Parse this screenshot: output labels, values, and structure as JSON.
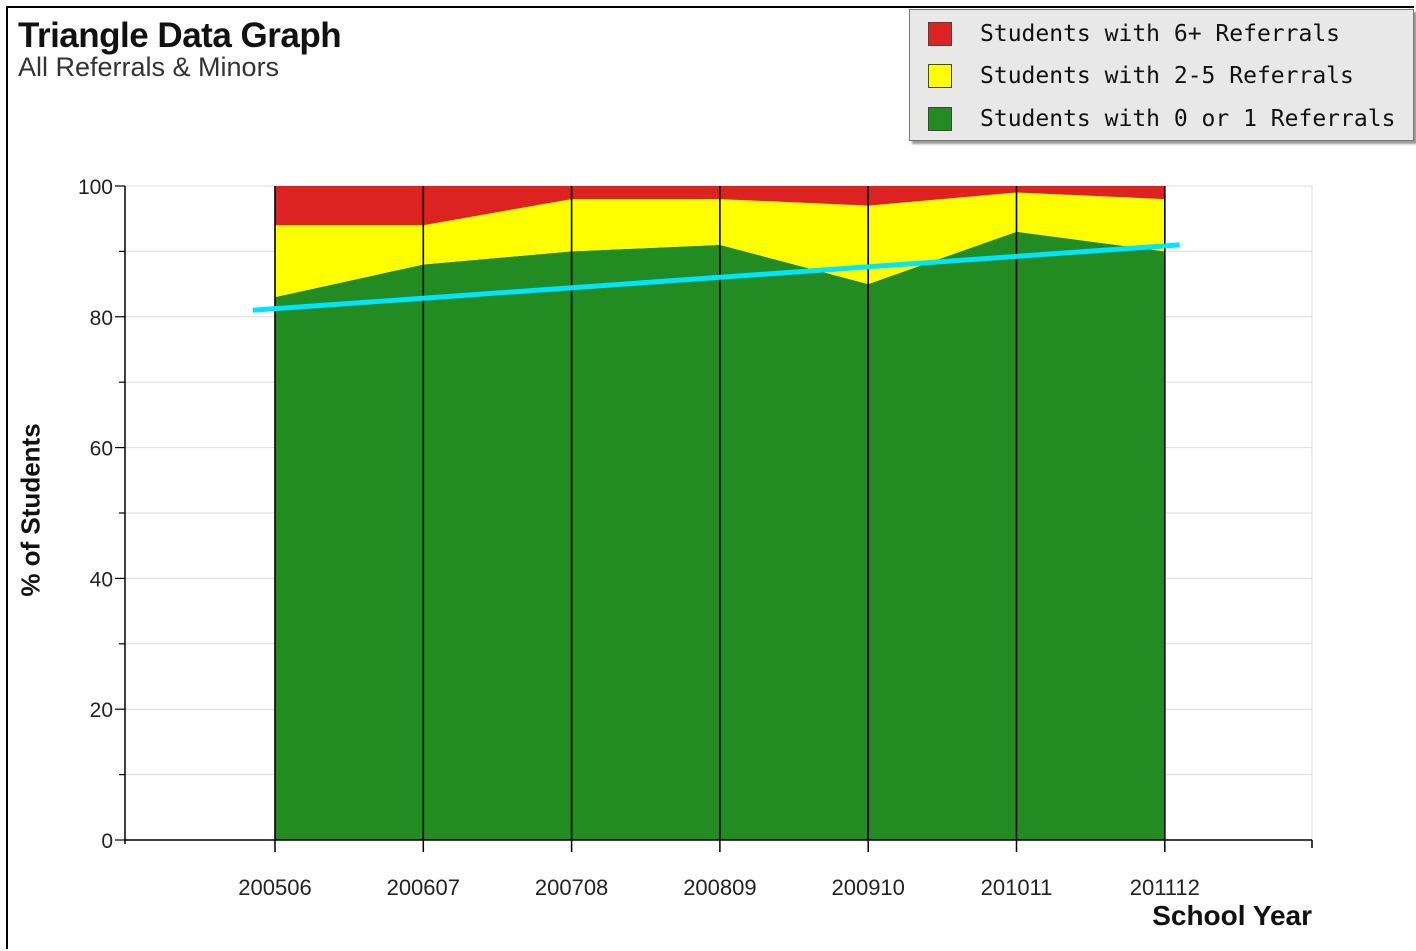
{
  "chart_data": {
    "type": "area",
    "title": "Triangle Data Graph",
    "subtitle": "All Referrals & Minors",
    "xlabel": "School Year",
    "ylabel": "% of Students",
    "ylim": [
      0,
      100
    ],
    "yticks": [
      0,
      20,
      40,
      60,
      80,
      100
    ],
    "categories": [
      "200506",
      "200607",
      "200708",
      "200809",
      "200910",
      "201011",
      "201112"
    ],
    "stacked": true,
    "grid": true,
    "legend_position": "top-right",
    "series": [
      {
        "name": "Students with 0 or 1 Referrals",
        "color": "#228B22",
        "values": [
          83,
          88,
          90,
          91,
          85,
          93,
          90
        ]
      },
      {
        "name": "Students with 2-5 Referrals",
        "color": "#FFFF00",
        "values": [
          11,
          6,
          8,
          7,
          12,
          6,
          8
        ]
      },
      {
        "name": "Students with 6+ Referrals",
        "color": "#DD2222",
        "values": [
          6,
          6,
          2,
          2,
          3,
          1,
          2
        ]
      }
    ],
    "trendline": {
      "color": "#00E5FF",
      "from": {
        "x": -0.15,
        "y": 81
      },
      "to": {
        "x": 6.1,
        "y": 91
      }
    }
  }
}
